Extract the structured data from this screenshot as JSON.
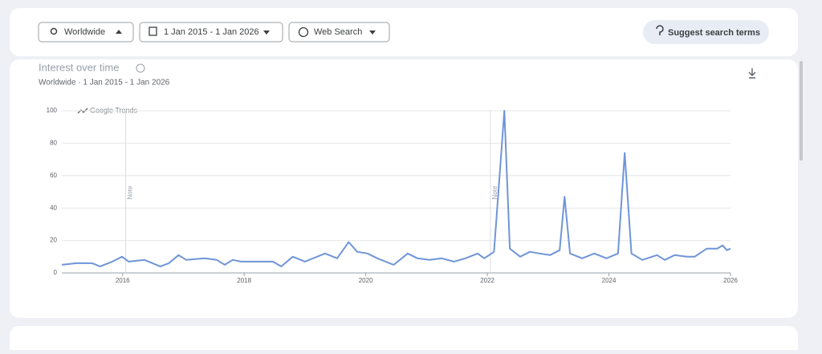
{
  "toolbar": {
    "location": "Worldwide",
    "date_range": "1 Jan 2015 - 1 Jan 2026",
    "property": "Web Search",
    "suggest": "Suggest search terms"
  },
  "chart_data": {
    "type": "line",
    "title": "Interest over time",
    "subtitle": "Worldwide · 1 Jan 2015 - 1 Jan 2026",
    "watermark": "Google Trends",
    "color": "#6f95d8",
    "grid": true,
    "xlim": [
      2015,
      2026
    ],
    "xticks": [
      2016,
      2018,
      2020,
      2022,
      2024,
      2026
    ],
    "ylim": [
      0,
      100
    ],
    "yticks": [
      0,
      20,
      40,
      60,
      80,
      100
    ],
    "annotations": [
      {
        "x": 2016.05,
        "label": "Note"
      },
      {
        "x": 2022.05,
        "label": "Note"
      }
    ],
    "x": [
      2015.0,
      2015.24,
      2015.5,
      2015.63,
      2015.83,
      2015.99,
      2016.1,
      2016.36,
      2016.62,
      2016.76,
      2016.92,
      2017.05,
      2017.35,
      2017.55,
      2017.68,
      2017.81,
      2017.95,
      2018.47,
      2018.61,
      2018.8,
      2019.0,
      2019.33,
      2019.53,
      2019.72,
      2019.86,
      2020.03,
      2020.19,
      2020.46,
      2020.69,
      2020.85,
      2021.05,
      2021.25,
      2021.45,
      2021.64,
      2021.84,
      2021.95,
      2022.11,
      2022.28,
      2022.37,
      2022.54,
      2022.7,
      2022.86,
      2023.03,
      2023.19,
      2023.27,
      2023.36,
      2023.56,
      2023.76,
      2023.96,
      2024.15,
      2024.26,
      2024.37,
      2024.55,
      2024.79,
      2024.92,
      2025.08,
      2025.28,
      2025.41,
      2025.61,
      2025.78,
      2025.87,
      2025.94,
      2026.0
    ],
    "values": [
      5,
      6,
      6,
      4,
      7,
      10,
      7,
      8,
      4,
      6,
      11,
      8,
      9,
      8,
      5,
      8,
      7,
      7,
      4,
      10,
      7,
      12,
      9,
      19,
      13,
      12,
      9,
      5,
      12,
      9,
      8,
      9,
      7,
      9,
      12,
      9,
      13,
      100,
      15,
      10,
      13,
      12,
      11,
      14,
      47,
      12,
      9,
      12,
      9,
      12,
      74,
      12,
      8,
      11,
      8,
      11,
      10,
      10,
      15,
      15,
      17,
      14,
      15
    ]
  }
}
